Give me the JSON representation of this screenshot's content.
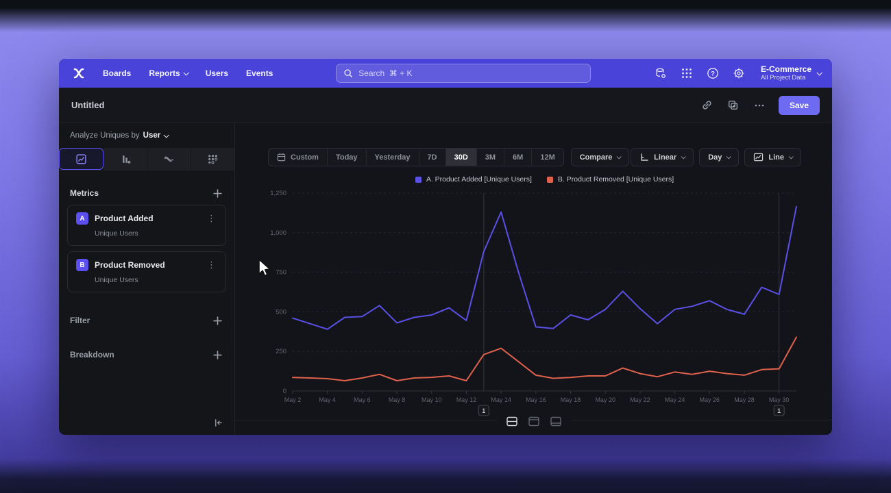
{
  "nav": {
    "items": [
      {
        "label": "Boards",
        "has_menu": false
      },
      {
        "label": "Reports",
        "has_menu": true
      },
      {
        "label": "Users",
        "has_menu": false
      },
      {
        "label": "Events",
        "has_menu": false
      }
    ],
    "search_placeholder": "Search  ⌘ + K",
    "icons": [
      "data-settings-icon",
      "apps-grid-icon",
      "help-icon",
      "settings-icon"
    ],
    "project": {
      "name": "E-Commerce",
      "subtitle": "All Project Data"
    }
  },
  "doc_header": {
    "title": "Untitled",
    "action_icons": [
      "link-icon",
      "duplicate-icon",
      "more-icon"
    ],
    "save_label": "Save"
  },
  "sidebar": {
    "analyze_prefix": "Analyze Uniques by",
    "analyze_value": "User",
    "tabs": [
      {
        "name": "insights-tab",
        "icon": "line-chart-icon",
        "active": true
      },
      {
        "name": "bar-chart-tab",
        "icon": "bar-chart-icon",
        "active": false
      },
      {
        "name": "flows-tab",
        "icon": "flows-icon",
        "active": false
      },
      {
        "name": "retention-tab",
        "icon": "retention-grid-icon",
        "active": false
      }
    ],
    "metrics_title": "Metrics",
    "metrics": [
      {
        "badge": "A",
        "name": "Product Added",
        "subtitle": "Unique Users"
      },
      {
        "badge": "B",
        "name": "Product Removed",
        "subtitle": "Unique Users"
      }
    ],
    "filter_label": "Filter",
    "breakdown_label": "Breakdown"
  },
  "toolbar": {
    "ranges": [
      "Custom",
      "Today",
      "Yesterday",
      "7D",
      "30D",
      "3M",
      "6M",
      "12M"
    ],
    "active_range": "30D",
    "compare_label": "Compare",
    "scale_label": "Linear",
    "interval_label": "Day",
    "chart_type_label": "Line"
  },
  "chart_data": {
    "type": "line",
    "title": "",
    "x": [
      "May 2",
      "May 3",
      "May 4",
      "May 5",
      "May 6",
      "May 7",
      "May 8",
      "May 9",
      "May 10",
      "May 11",
      "May 12",
      "May 13",
      "May 14",
      "May 15",
      "May 16",
      "May 17",
      "May 18",
      "May 19",
      "May 20",
      "May 21",
      "May 22",
      "May 23",
      "May 24",
      "May 25",
      "May 26",
      "May 27",
      "May 28",
      "May 29",
      "May 30",
      "May 31"
    ],
    "xlabel_every": 2,
    "series": [
      {
        "name": "A. Product Added [Unique Users]",
        "color": "#5b50e6",
        "values": [
          460,
          425,
          390,
          465,
          470,
          540,
          430,
          465,
          480,
          525,
          445,
          880,
          1130,
          750,
          405,
          395,
          480,
          450,
          515,
          630,
          520,
          425,
          515,
          535,
          570,
          515,
          485,
          655,
          610,
          1165
        ]
      },
      {
        "name": "B. Product Removed [Unique Users]",
        "color": "#e0614c",
        "values": [
          85,
          82,
          78,
          65,
          82,
          105,
          65,
          82,
          86,
          95,
          65,
          230,
          270,
          185,
          100,
          80,
          85,
          95,
          95,
          145,
          110,
          90,
          120,
          105,
          125,
          110,
          100,
          135,
          140,
          340
        ]
      }
    ],
    "ylim": [
      0,
      1250
    ],
    "yticks": [
      {
        "v": 0,
        "label": "0"
      },
      {
        "v": 250,
        "label": "250"
      },
      {
        "v": 500,
        "label": "500"
      },
      {
        "v": 750,
        "label": "750"
      },
      {
        "v": 1000,
        "label": "1,000"
      },
      {
        "v": 1250,
        "label": "1,250"
      }
    ],
    "grid": "dashed-horizontal",
    "legend_position": "top",
    "annotations": [
      {
        "index": 11,
        "label": "1"
      },
      {
        "index": 28,
        "label": "1"
      }
    ]
  },
  "footer": {
    "view_toggles": [
      {
        "name": "split-view",
        "active": true
      },
      {
        "name": "chart-only-view",
        "active": false
      },
      {
        "name": "table-only-view",
        "active": false
      }
    ]
  },
  "colors": {
    "nav_bar": "#4a43d9",
    "save_button": "#6f6af2",
    "accent": "#5b4ff0",
    "series_a": "#5b50e6",
    "series_b": "#e0614c"
  }
}
